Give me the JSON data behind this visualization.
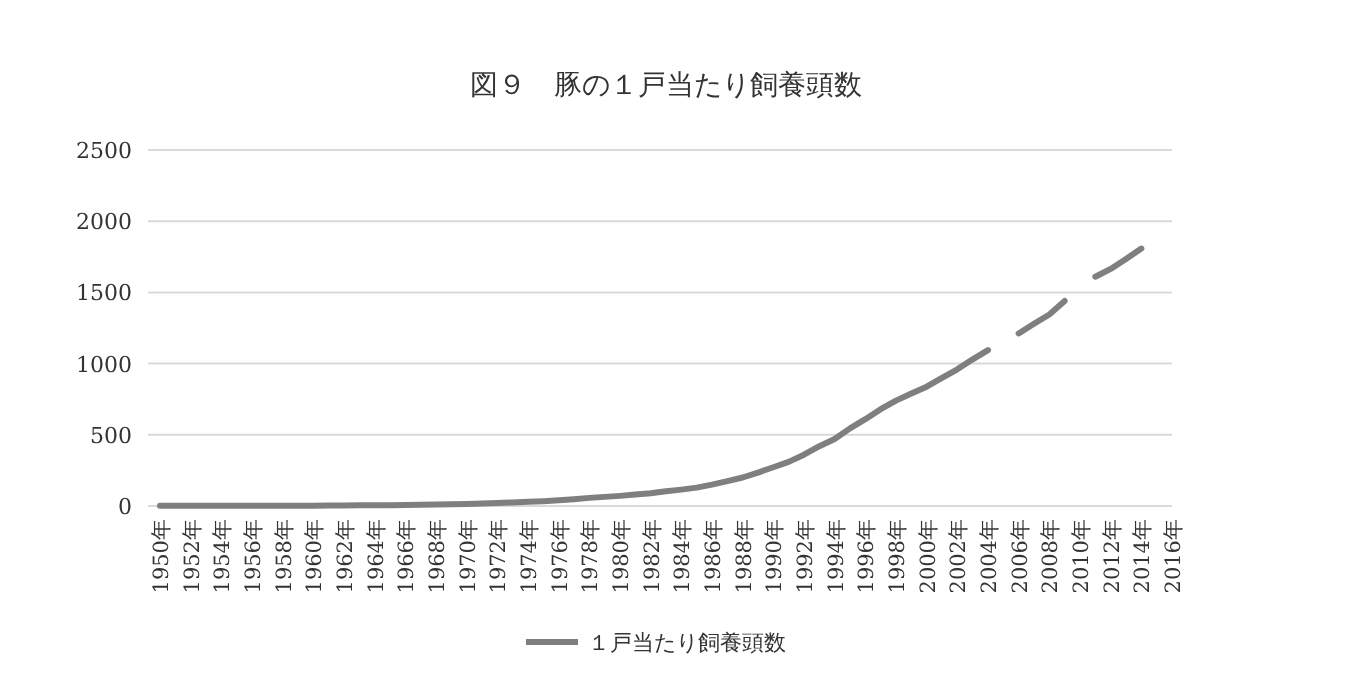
{
  "chart_data": {
    "type": "line",
    "title": "図９　豚の１戸当たり飼養頭数",
    "categories": [
      "1950年",
      null,
      "1952年",
      null,
      "1954年",
      null,
      "1956年",
      null,
      "1958年",
      null,
      "1960年",
      null,
      "1962年",
      null,
      "1964年",
      null,
      "1966年",
      null,
      "1968年",
      null,
      "1970年",
      null,
      "1972年",
      null,
      "1974年",
      null,
      "1976年",
      null,
      "1978年",
      null,
      "1980年",
      null,
      "1982年",
      null,
      "1984年",
      null,
      "1986年",
      null,
      "1988年",
      null,
      "1990年",
      null,
      "1992年",
      null,
      "1994年",
      null,
      "1996年",
      null,
      "1998年",
      null,
      "2000年",
      null,
      "2002年",
      null,
      "2004年",
      null,
      "2006年",
      null,
      "2008年",
      null,
      "2010年",
      null,
      "2012年",
      null,
      "2014年",
      null,
      "2016年"
    ],
    "series": [
      {
        "name": "１戸当たり飼養頭数",
        "color": "#7f7f7f",
        "values": [
          1,
          1,
          2,
          2,
          2,
          2,
          2,
          2,
          2,
          2,
          2,
          3,
          4,
          5,
          6,
          6,
          7,
          8,
          10,
          12,
          14,
          17,
          21,
          25,
          30,
          34,
          40,
          48,
          57,
          64,
          71,
          80,
          90,
          103,
          115,
          129,
          150,
          175,
          200,
          235,
          272,
          310,
          360,
          420,
          470,
          545,
          610,
          680,
          740,
          790,
          838,
          900,
          960,
          1030,
          1095,
          null,
          1212,
          1280,
          1345,
          1440,
          null,
          1610,
          1665,
          1735,
          1808,
          null,
          null
        ]
      }
    ],
    "ylim": [
      0,
      2500
    ],
    "yticks": [
      0,
      500,
      1000,
      1500,
      2000,
      2500
    ],
    "grid": "y",
    "legend": "bottom",
    "line_style": "solid"
  }
}
